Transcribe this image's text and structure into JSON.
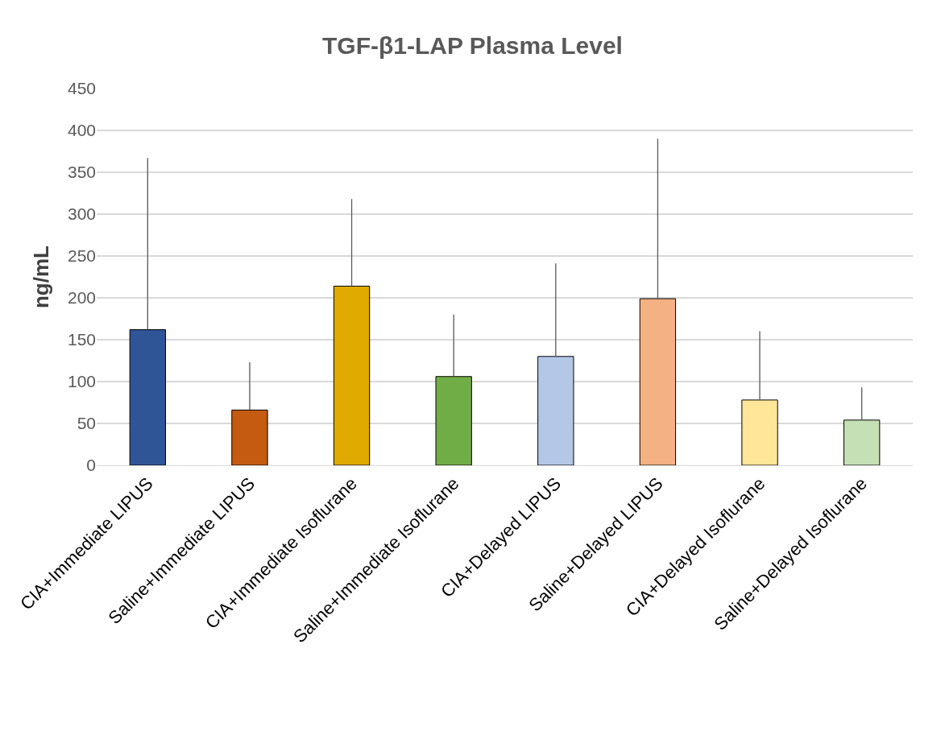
{
  "chart_data": {
    "type": "bar",
    "title": "TGF-β1-LAP Plasma Level",
    "ylabel": "ng/mL",
    "categories": [
      "CIA+Immediate LIPUS",
      "Saline+Immediate LIPUS",
      "CIA+Immediate Isoflurane",
      "Saline+Immediate Isoflurane",
      "CIA+Delayed LIPUS",
      "Saline+Delayed LIPUS",
      "CIA+Delayed Isoflurane",
      "Saline+Delayed Isoflurane"
    ],
    "values": [
      162,
      66,
      214,
      106,
      130,
      199,
      78,
      54
    ],
    "errors": [
      [
        162,
        367
      ],
      [
        66,
        123
      ],
      [
        214,
        318
      ],
      [
        106,
        180
      ],
      [
        130,
        241
      ],
      [
        199,
        390
      ],
      [
        78,
        160
      ],
      [
        54,
        93
      ]
    ],
    "colors": [
      "#2f5597",
      "#c55a11",
      "#e0aa00",
      "#70ad47",
      "#b4c7e7",
      "#f4b183",
      "#ffe699",
      "#c5e0b4"
    ],
    "ylim": [
      0,
      450
    ],
    "yticks": [
      0,
      50,
      100,
      150,
      200,
      250,
      300,
      350,
      400,
      450
    ],
    "grid": "y"
  }
}
